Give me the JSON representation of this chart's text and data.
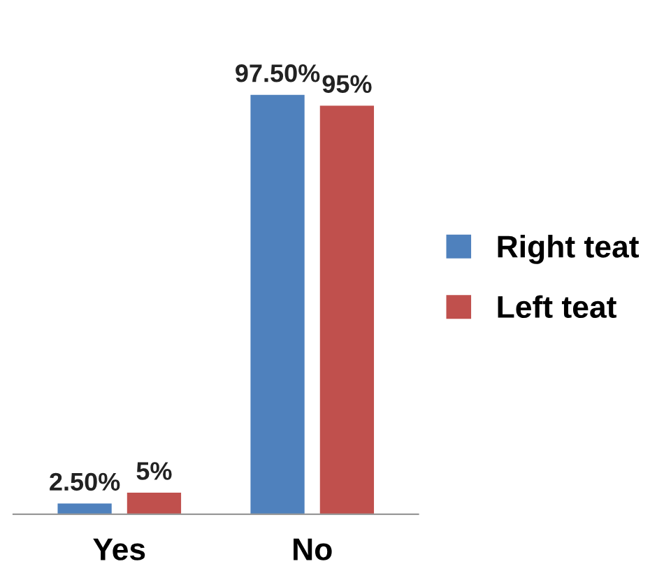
{
  "chart_data": {
    "type": "bar",
    "categories": [
      "Yes",
      "No"
    ],
    "series": [
      {
        "name": "Right teat",
        "color": "#4f81bd",
        "values": [
          2.5,
          97.5
        ],
        "value_labels": [
          "2.50%",
          "97.50%"
        ]
      },
      {
        "name": "Left teat",
        "color": "#c0504d",
        "values": [
          5,
          95
        ],
        "value_labels": [
          "5%",
          "95%"
        ]
      }
    ],
    "legend": "right",
    "grid": false
  }
}
